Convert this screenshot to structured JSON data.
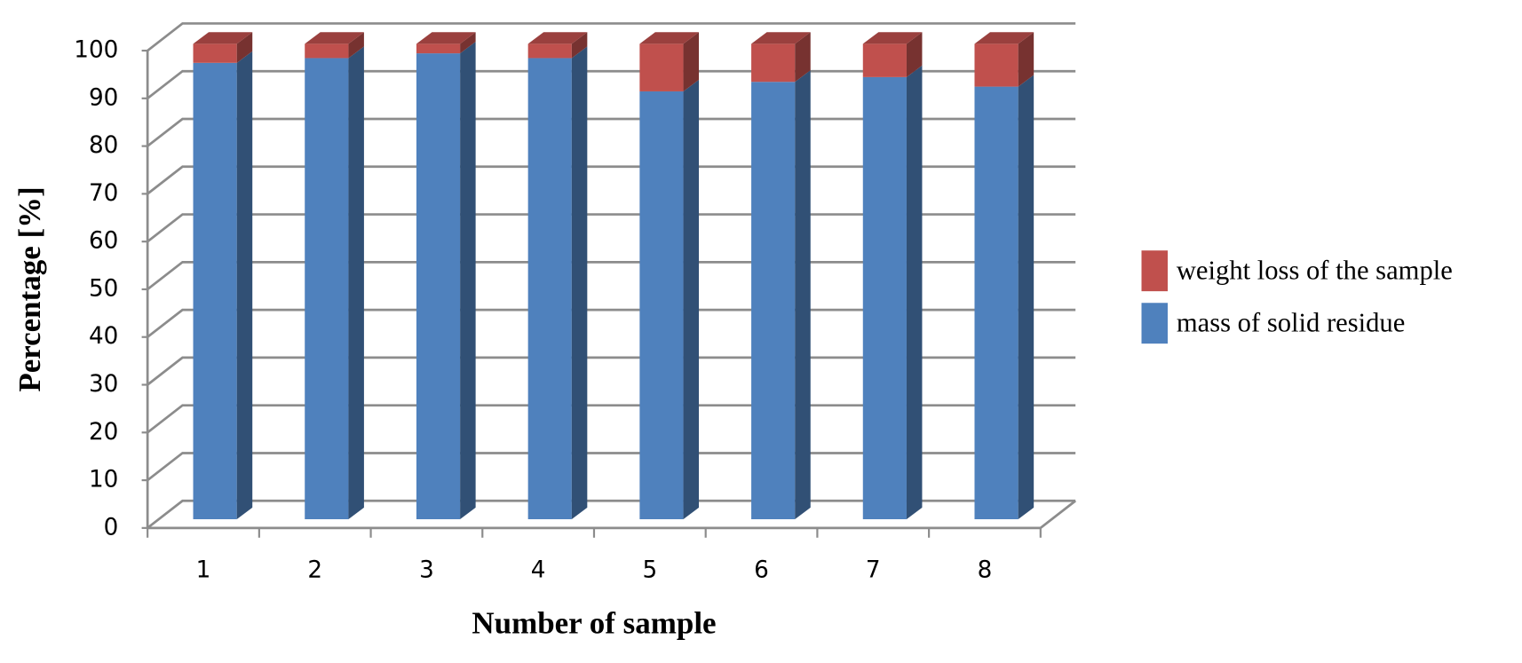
{
  "chart_data": {
    "type": "bar3d_stacked",
    "x_label": "Number of sample",
    "y_label": "Percentage [%]",
    "categories": [
      "1",
      "2",
      "3",
      "4",
      "5",
      "6",
      "7",
      "8"
    ],
    "series": [
      {
        "name": "mass of solid residue",
        "color": "#4f81bd",
        "values": [
          96,
          97,
          98,
          97,
          90,
          92,
          93,
          91
        ]
      },
      {
        "name": "weight loss of the sample",
        "color": "#c0504d",
        "values": [
          4,
          3,
          2,
          3,
          10,
          8,
          7,
          9
        ]
      }
    ],
    "ylim": [
      0,
      100
    ],
    "yticks": [
      0,
      10,
      20,
      30,
      40,
      50,
      60,
      70,
      80,
      90,
      100
    ],
    "grid": true,
    "legend": "right"
  }
}
